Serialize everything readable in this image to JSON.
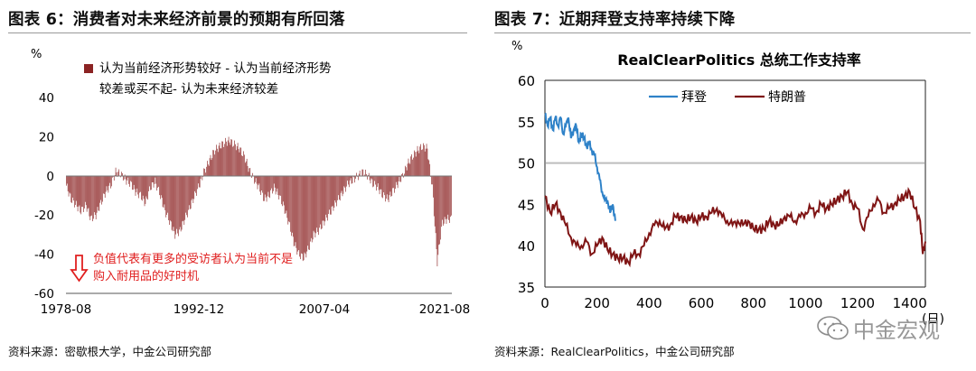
{
  "left": {
    "figure_title": "图表 6：消费者对未来经济前景的预期有所回落",
    "source": "资料来源：密歇根大学，中金公司研究部",
    "colors": {
      "bar": "#8b2323",
      "arrow": "#e02020"
    }
  },
  "right": {
    "figure_title": "图表 7：近期拜登支持率持续下降",
    "source": "资料来源：RealClearPolitics，中金公司研究部",
    "colors": {
      "biden": "#2f82c8",
      "trump": "#7f1414",
      "ref_line": "#bdbdbd"
    }
  },
  "watermark": {
    "text": "中金宏观"
  },
  "chart_data": [
    {
      "type": "bar",
      "ylabel": "%",
      "ylim": [
        -60,
        40
      ],
      "yticks": [
        40,
        20,
        0,
        -20,
        -40,
        -60
      ],
      "x_tick_labels": [
        "1978-08",
        "1992-12",
        "2007-04",
        "2021-08"
      ],
      "x_range": [
        "1978-08",
        "2021-08"
      ],
      "legend": {
        "label": "认为当前经济形势较好 - 认为当前经济形势较差或买不起- 认为未来经济较差",
        "placement": "top"
      },
      "annotation": "负值代表有更多的受访者认为当前不是购入耐用品的好时机",
      "series": [
        {
          "values_semiannual_from_1978H2": [
            -5,
            -12,
            -15,
            -18,
            -15,
            -22,
            -20,
            -14,
            -8,
            -5,
            2,
            1,
            -2,
            -4,
            -8,
            -10,
            -14,
            -6,
            -3,
            -10,
            -18,
            -24,
            -30,
            -28,
            -22,
            -16,
            -10,
            -4,
            3,
            8,
            13,
            15,
            17,
            18,
            16,
            14,
            10,
            3,
            -2,
            -6,
            -12,
            -10,
            -6,
            -10,
            -16,
            -24,
            -34,
            -40,
            -42,
            -37,
            -30,
            -28,
            -24,
            -20,
            -16,
            -12,
            -8,
            -4,
            -2,
            0,
            2,
            0,
            -4,
            -6,
            -10,
            -12,
            -8,
            -4,
            0,
            6,
            10,
            13,
            15,
            14,
            -6,
            -44,
            -24,
            -22
          ]
        }
      ]
    },
    {
      "type": "line",
      "title": "RealClearPolitics 总统工作支持率",
      "xlabel": "(日)",
      "ylabel": "%",
      "xlim": [
        0,
        1460
      ],
      "ylim": [
        35,
        60
      ],
      "xticks": [
        0,
        200,
        400,
        600,
        800,
        1000,
        1200,
        1400
      ],
      "yticks": [
        60,
        55,
        50,
        45,
        40,
        35
      ],
      "reference_line": 50,
      "legend": {
        "placement": "top-center"
      },
      "series": [
        {
          "name": "拜登",
          "x": [
            0,
            10,
            20,
            30,
            40,
            50,
            60,
            70,
            80,
            90,
            100,
            110,
            120,
            130,
            140,
            150,
            160,
            170,
            180,
            190,
            200,
            210,
            220,
            230,
            240,
            250,
            260,
            270
          ],
          "y": [
            56,
            54.5,
            55.5,
            54,
            55.5,
            54.5,
            55.5,
            53.5,
            54.5,
            55.5,
            53,
            54,
            54.5,
            52.5,
            53.5,
            53,
            52,
            52.5,
            51.5,
            51,
            49.5,
            48,
            46.5,
            45.5,
            45.5,
            44,
            45,
            43
          ]
        },
        {
          "name": "特朗普",
          "x": [
            0,
            20,
            40,
            60,
            80,
            100,
            120,
            140,
            160,
            180,
            200,
            220,
            240,
            260,
            280,
            300,
            320,
            340,
            360,
            380,
            400,
            420,
            440,
            460,
            480,
            500,
            520,
            540,
            560,
            580,
            600,
            620,
            640,
            660,
            680,
            700,
            720,
            740,
            760,
            780,
            800,
            820,
            840,
            860,
            880,
            900,
            920,
            940,
            960,
            980,
            1000,
            1020,
            1040,
            1060,
            1080,
            1100,
            1120,
            1140,
            1160,
            1180,
            1200,
            1220,
            1240,
            1260,
            1280,
            1300,
            1320,
            1340,
            1360,
            1380,
            1400,
            1420,
            1440,
            1450,
            1460
          ],
          "y": [
            46,
            44,
            45,
            44,
            42.5,
            41,
            40,
            40,
            40.5,
            39,
            40,
            41,
            39.5,
            39,
            38.5,
            38.5,
            38,
            39,
            39,
            40,
            41.5,
            42.5,
            43,
            42,
            42.5,
            43.5,
            43.5,
            43,
            43.5,
            43,
            43.5,
            43.5,
            44,
            44.5,
            43.5,
            43,
            42.5,
            43,
            42.5,
            43,
            42,
            42,
            42,
            43,
            42.5,
            42.5,
            43.5,
            43.5,
            43,
            43.5,
            44,
            44.5,
            44,
            45,
            44.5,
            45,
            45.5,
            46,
            46.5,
            45,
            44.5,
            42,
            43.5,
            45,
            45.5,
            44,
            44.5,
            45,
            45.5,
            46,
            46.5,
            44.5,
            43,
            39,
            40.5
          ]
        }
      ]
    }
  ]
}
